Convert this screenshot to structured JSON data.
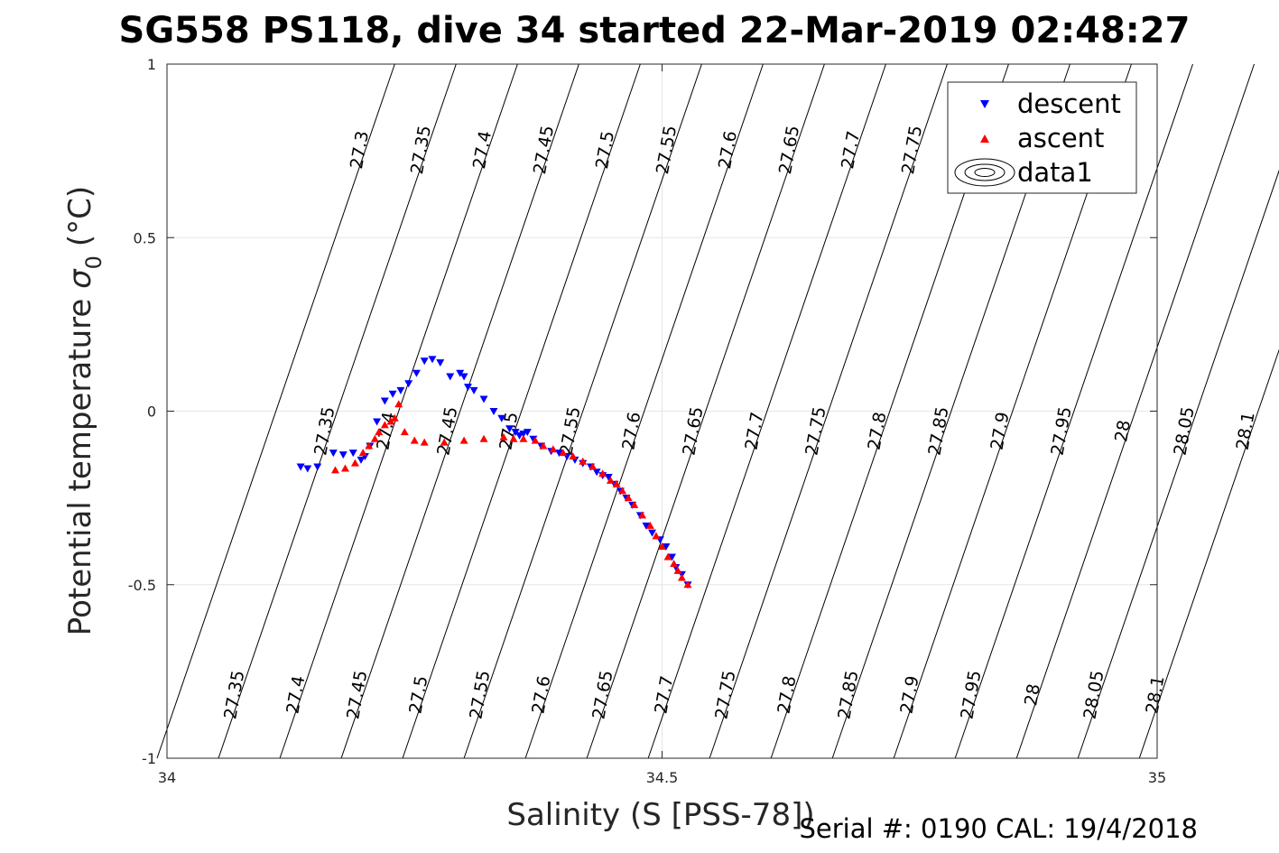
{
  "chart_data": {
    "type": "scatter",
    "title": "SG558 PS118, dive 34 started 22-Mar-2019 02:48:27",
    "xlabel": "Salinity (S [PSS-78])",
    "ylabel": "Potential temperature",
    "ylabel_symbol": "σ",
    "ylabel_subscript": "0",
    "ylabel_unit": "(°C)",
    "xlim": [
      34,
      35
    ],
    "ylim": [
      -1,
      1
    ],
    "x_ticks": [
      34,
      34.5,
      35
    ],
    "x_tick_labels": [
      "34",
      "34.5",
      "35"
    ],
    "y_ticks": [
      -1,
      -0.5,
      0,
      0.5,
      1
    ],
    "y_tick_labels": [
      "-1",
      "-0.5",
      "0",
      "0.5",
      "1"
    ],
    "grid": true,
    "legend_position": "top-right",
    "legend": [
      "descent",
      "ascent",
      "data1"
    ],
    "footer": "Serial #: 0190  CAL: 19/4/2018",
    "colors": {
      "descent": "#0000ff",
      "ascent": "#ff0000",
      "contour": "#000000",
      "grid": "#e6e6e6"
    },
    "density_contour_values": [
      27.3,
      27.35,
      27.4,
      27.45,
      27.5,
      27.55,
      27.6,
      27.65,
      27.7,
      27.75,
      27.8,
      27.85,
      27.9,
      27.95,
      28.0,
      28.05,
      28.1
    ],
    "contour_labels_top": [
      "27.3",
      "27.35",
      "27.4",
      "27.45",
      "27.5",
      "27.55",
      "27.6",
      "27.65",
      "27.7",
      "27.75",
      "27.8",
      "27.85",
      "28.05"
    ],
    "contour_labels_middle": [
      "27.35",
      "27.4",
      "27.45",
      "27.5",
      "27.55",
      "27.6",
      "27.65",
      "27.7",
      "27.75",
      "27.8",
      "27.85",
      "27.9",
      "27.95",
      "28",
      "28.05",
      "28.1"
    ],
    "contour_labels_bottom": [
      "27.35",
      "27.4",
      "27.45",
      "27.5",
      "27.55",
      "27.6",
      "27.65",
      "27.7",
      "27.75",
      "27.8",
      "27.85",
      "27.9",
      "27.95",
      "28",
      "28.05",
      "28.1"
    ],
    "series": [
      {
        "name": "descent",
        "marker": "down-triangle",
        "x": [
          34.135,
          34.142,
          34.152,
          34.168,
          34.178,
          34.188,
          34.196,
          34.2,
          34.205,
          34.212,
          34.22,
          34.228,
          34.236,
          34.244,
          34.252,
          34.26,
          34.268,
          34.276,
          34.286,
          34.296,
          34.3,
          34.304,
          34.31,
          34.32,
          34.33,
          34.338,
          34.346,
          34.352,
          34.356,
          34.36,
          34.364,
          34.37,
          34.378,
          34.388,
          34.396,
          34.404,
          34.412,
          34.42,
          34.428,
          34.434,
          34.44,
          34.446,
          34.452,
          34.458,
          34.464,
          34.47,
          34.478,
          34.484,
          34.49,
          34.498,
          34.504,
          34.51,
          34.514,
          34.52,
          34.526
        ],
        "y": [
          -0.16,
          -0.165,
          -0.16,
          -0.12,
          -0.125,
          -0.12,
          -0.14,
          -0.13,
          -0.1,
          -0.03,
          0.03,
          0.05,
          0.06,
          0.08,
          0.11,
          0.145,
          0.15,
          0.14,
          0.1,
          0.11,
          0.1,
          0.07,
          0.06,
          0.035,
          0.0,
          -0.02,
          -0.05,
          -0.06,
          -0.07,
          -0.065,
          -0.06,
          -0.08,
          -0.1,
          -0.115,
          -0.12,
          -0.13,
          -0.14,
          -0.15,
          -0.16,
          -0.175,
          -0.185,
          -0.19,
          -0.21,
          -0.23,
          -0.25,
          -0.27,
          -0.3,
          -0.33,
          -0.35,
          -0.37,
          -0.39,
          -0.42,
          -0.45,
          -0.47,
          -0.5
        ]
      },
      {
        "name": "ascent",
        "marker": "up-triangle",
        "x": [
          34.17,
          34.18,
          34.19,
          34.198,
          34.204,
          34.21,
          34.214,
          34.22,
          34.226,
          34.23,
          34.234,
          34.24,
          34.25,
          34.26,
          34.28,
          34.3,
          34.32,
          34.34,
          34.35,
          34.36,
          34.372,
          34.38,
          34.39,
          34.4,
          34.41,
          34.42,
          34.43,
          34.44,
          34.448,
          34.454,
          34.46,
          34.466,
          34.472,
          34.48,
          34.488,
          34.494,
          34.5,
          34.506,
          34.512,
          34.516,
          34.52,
          34.526
        ],
        "y": [
          -0.17,
          -0.165,
          -0.15,
          -0.12,
          -0.1,
          -0.08,
          -0.06,
          -0.04,
          -0.03,
          -0.02,
          0.02,
          -0.06,
          -0.085,
          -0.09,
          -0.09,
          -0.085,
          -0.08,
          -0.075,
          -0.08,
          -0.08,
          -0.085,
          -0.1,
          -0.11,
          -0.12,
          -0.13,
          -0.145,
          -0.16,
          -0.18,
          -0.2,
          -0.21,
          -0.23,
          -0.25,
          -0.27,
          -0.3,
          -0.33,
          -0.36,
          -0.39,
          -0.42,
          -0.44,
          -0.46,
          -0.48,
          -0.5
        ]
      }
    ]
  }
}
